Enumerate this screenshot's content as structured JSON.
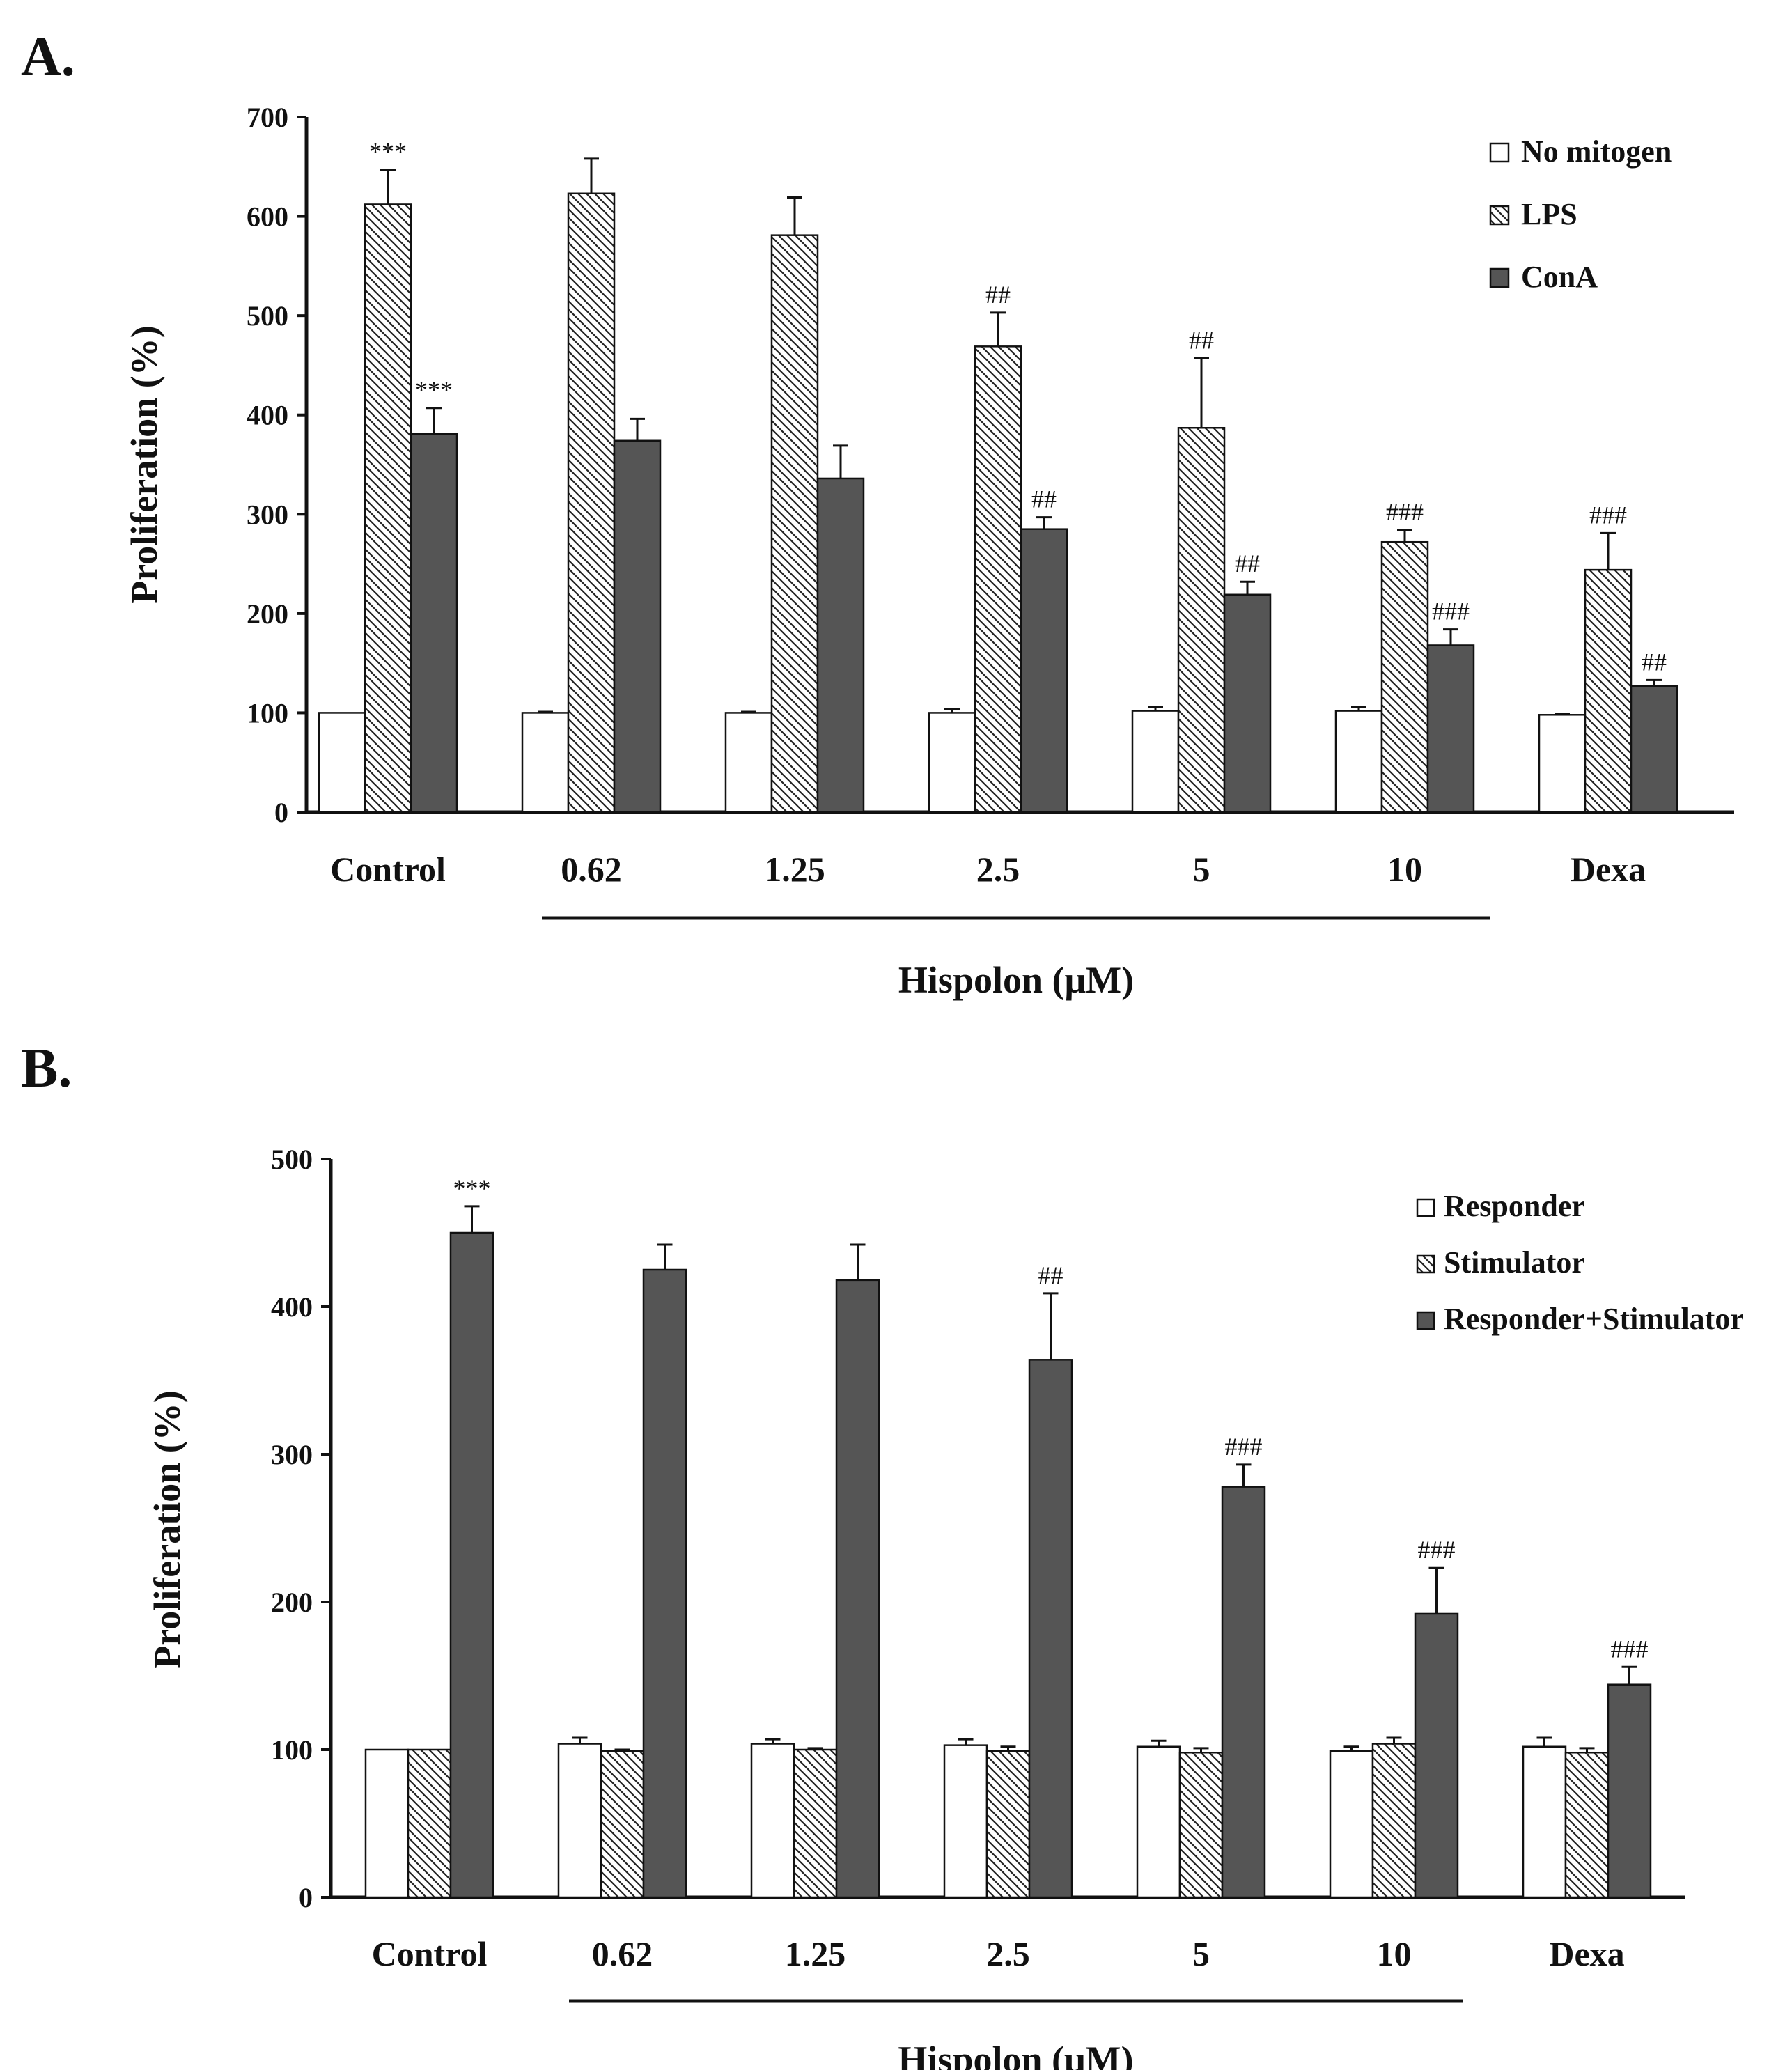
{
  "chart_data": [
    {
      "panel": "A.",
      "type": "bar",
      "ylabel": "Proliferation (%)",
      "ylim": [
        0,
        700
      ],
      "yticks": [
        0,
        100,
        200,
        300,
        400,
        500,
        600,
        700
      ],
      "categories": [
        "Control",
        "0.62",
        "1.25",
        "2.5",
        "5",
        "10",
        "Dexa"
      ],
      "group_label": "Hispolon (μM)",
      "group_span": [
        "0.62",
        "10"
      ],
      "legend_position": "top-right",
      "series": [
        {
          "name": "No mitogen",
          "style": "white",
          "values": [
            100,
            100,
            100,
            100,
            102,
            102,
            98
          ],
          "errors": [
            0,
            1,
            1,
            4,
            4,
            4,
            1
          ],
          "annotations": [
            "",
            "",
            "",
            "",
            "",
            "",
            ""
          ]
        },
        {
          "name": "LPS",
          "style": "hatched",
          "values": [
            612,
            623,
            581,
            469,
            387,
            272,
            244
          ],
          "errors": [
            35,
            35,
            38,
            34,
            70,
            12,
            37
          ],
          "annotations": [
            "***",
            "",
            "",
            "##",
            "##",
            "###",
            "###"
          ]
        },
        {
          "name": "ConA",
          "style": "dark",
          "values": [
            381,
            374,
            336,
            285,
            219,
            168,
            127
          ],
          "errors": [
            26,
            22,
            33,
            12,
            13,
            16,
            6
          ],
          "annotations": [
            "***",
            "",
            "",
            "##",
            "##",
            "###",
            "##"
          ]
        }
      ]
    },
    {
      "panel": "B.",
      "type": "bar",
      "ylabel": "Proliferation (%)",
      "ylim": [
        0,
        500
      ],
      "yticks": [
        0,
        100,
        200,
        300,
        400,
        500
      ],
      "categories": [
        "Control",
        "0.62",
        "1.25",
        "2.5",
        "5",
        "10",
        "Dexa"
      ],
      "group_label": "Hispolon (μM)",
      "group_span": [
        "0.62",
        "10"
      ],
      "legend_position": "top-right",
      "series": [
        {
          "name": "Responder",
          "style": "white",
          "values": [
            100,
            104,
            104,
            103,
            102,
            99,
            102
          ],
          "errors": [
            0,
            4,
            3,
            4,
            4,
            3,
            6
          ],
          "annotations": [
            "",
            "",
            "",
            "",
            "",
            "",
            ""
          ]
        },
        {
          "name": "Stimulator",
          "style": "hatched",
          "values": [
            100,
            99,
            100,
            99,
            98,
            104,
            98
          ],
          "errors": [
            0,
            1,
            1,
            3,
            3,
            4,
            3
          ],
          "annotations": [
            "",
            "",
            "",
            "",
            "",
            "",
            ""
          ]
        },
        {
          "name": "Responder+Stimulator",
          "style": "dark",
          "values": [
            450,
            425,
            418,
            364,
            278,
            192,
            144
          ],
          "errors": [
            18,
            17,
            24,
            45,
            15,
            31,
            12
          ],
          "annotations": [
            "***",
            "",
            "",
            "##",
            "###",
            "###",
            "###"
          ]
        }
      ]
    }
  ]
}
